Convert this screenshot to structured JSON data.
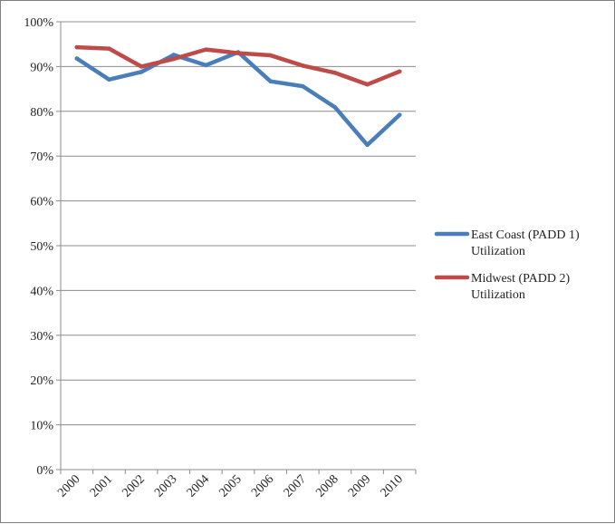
{
  "chart_data": {
    "type": "line",
    "title": "",
    "xlabel": "",
    "ylabel": "",
    "categories": [
      "2000",
      "2001",
      "2002",
      "2003",
      "2004",
      "2005",
      "2006",
      "2007",
      "2008",
      "2009",
      "2010"
    ],
    "ylim": [
      0,
      100
    ],
    "y_ticks": [
      "0%",
      "10%",
      "20%",
      "30%",
      "40%",
      "50%",
      "60%",
      "70%",
      "80%",
      "90%",
      "100%"
    ],
    "grid": true,
    "legend_position": "right",
    "series": [
      {
        "name": "East Coast (PADD 1) Utilization",
        "color": "#4a7ebb",
        "values": [
          91.8,
          87.1,
          88.8,
          92.6,
          90.3,
          93.2,
          86.7,
          85.6,
          80.9,
          72.5,
          79.2
        ]
      },
      {
        "name": "Midwest (PADD 2) Utilization",
        "color": "#be4b48",
        "values": [
          94.3,
          94.0,
          90.0,
          91.7,
          93.8,
          93.0,
          92.5,
          90.2,
          88.6,
          86.0,
          88.9
        ]
      }
    ]
  }
}
